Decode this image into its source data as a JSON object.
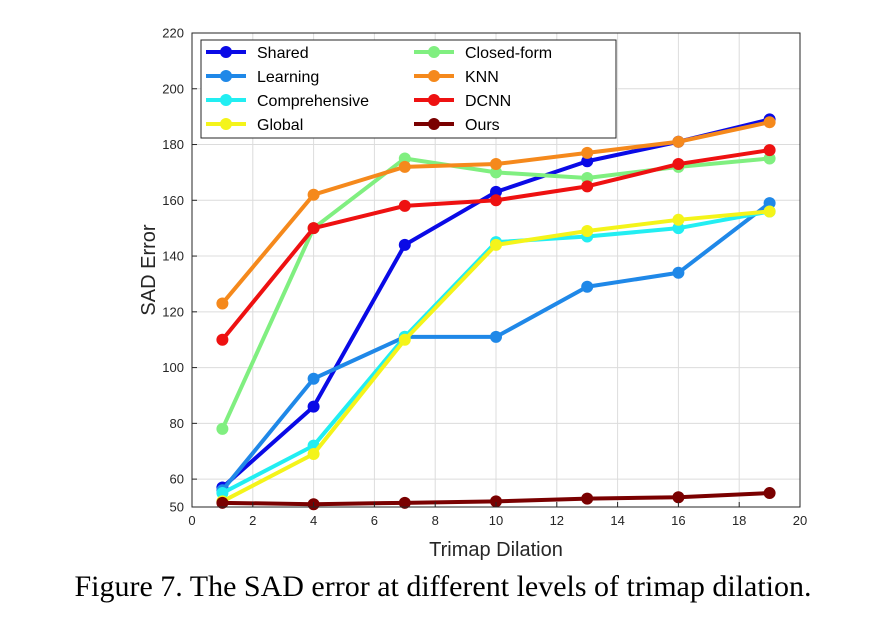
{
  "caption": "Figure 7. The SAD error at different levels of trimap dilation.",
  "chart_data": {
    "type": "line",
    "xlabel": "Trimap Dilation",
    "ylabel": "SAD Error",
    "xlim": [
      0,
      20
    ],
    "ylim": [
      50,
      220
    ],
    "xticks": [
      0,
      2,
      4,
      6,
      8,
      10,
      12,
      14,
      16,
      18,
      20
    ],
    "yticks": [
      50,
      60,
      80,
      100,
      120,
      140,
      160,
      180,
      200,
      220
    ],
    "grid": true,
    "legend_position": "top-left",
    "x": [
      1,
      4,
      7,
      10,
      13,
      16,
      19
    ],
    "series": [
      {
        "name": "Shared",
        "color": "#0a0ae6",
        "values": [
          57,
          86,
          144,
          163,
          174,
          181,
          189
        ]
      },
      {
        "name": "Learning",
        "color": "#1f88e8",
        "values": [
          56,
          96,
          111,
          111,
          129,
          134,
          159
        ]
      },
      {
        "name": "Comprehensive",
        "color": "#22eef2",
        "values": [
          55,
          72,
          111,
          145,
          147,
          150,
          156
        ]
      },
      {
        "name": "Global",
        "color": "#f4f41a",
        "values": [
          52,
          69,
          110,
          144,
          149,
          153,
          156
        ]
      },
      {
        "name": "Closed-form",
        "color": "#80ef80",
        "values": [
          78,
          150,
          175,
          170,
          168,
          172,
          175
        ]
      },
      {
        "name": "KNN",
        "color": "#f5891c",
        "values": [
          123,
          162,
          172,
          173,
          177,
          181,
          188
        ]
      },
      {
        "name": "DCNN",
        "color": "#ee1111",
        "values": [
          110,
          150,
          158,
          160,
          165,
          173,
          178
        ]
      },
      {
        "name": "Ours",
        "color": "#7a0000",
        "values": [
          51.5,
          51,
          51.5,
          52,
          53,
          53.5,
          55
        ]
      }
    ]
  }
}
